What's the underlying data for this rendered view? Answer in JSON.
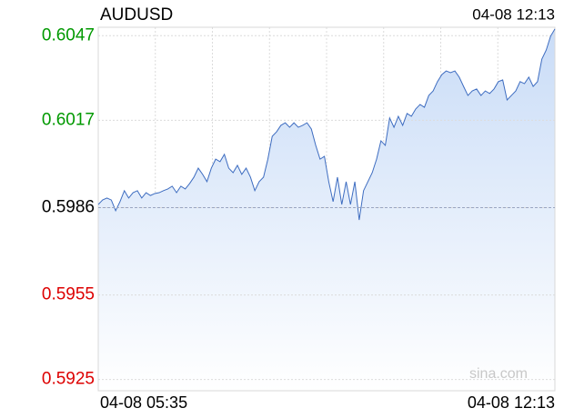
{
  "chart_data": {
    "type": "line",
    "title": "AUDUSD",
    "timestamp": "04-08 12:13",
    "watermark": "sina.com",
    "xlabels": [
      "04-08 05:35",
      "04-08 12:13"
    ],
    "x_grid_divisions": 8,
    "ylim": [
      0.5921,
      0.605
    ],
    "yticks": [
      0.6047,
      0.6017,
      0.5986,
      0.5955,
      0.5925
    ],
    "ytick_colors": [
      "#009900",
      "#009900",
      "#000000",
      "#dd0000",
      "#dd0000"
    ],
    "baseline": 0.5986,
    "grid": true,
    "color": "#3d6cc0",
    "fill": "#d6e4fa",
    "series": [
      {
        "values": [
          0.59871,
          0.59887,
          0.59894,
          0.59887,
          0.59849,
          0.59881,
          0.5992,
          0.59894,
          0.59913,
          0.5992,
          0.59894,
          0.59913,
          0.59903,
          0.5991,
          0.59913,
          0.5992,
          0.59926,
          0.59936,
          0.59913,
          0.59936,
          0.59926,
          0.59945,
          0.59968,
          0.6,
          0.59978,
          0.59952,
          0.6,
          0.60032,
          0.60023,
          0.60049,
          0.6,
          0.59984,
          0.6001,
          0.59978,
          0.6,
          0.59968,
          0.5992,
          0.59952,
          0.59968,
          0.60032,
          0.60113,
          0.60129,
          0.60152,
          0.60161,
          0.60145,
          0.60161,
          0.60145,
          0.60152,
          0.60161,
          0.60139,
          0.60081,
          0.60032,
          0.60042,
          0.59952,
          0.59881,
          0.59968,
          0.59871,
          0.59952,
          0.59871,
          0.59952,
          0.59816,
          0.5992,
          0.59952,
          0.59984,
          0.60032,
          0.60097,
          0.60081,
          0.60178,
          0.60145,
          0.60184,
          0.60152,
          0.60194,
          0.60184,
          0.6021,
          0.60226,
          0.60216,
          0.60258,
          0.60274,
          0.60307,
          0.60332,
          0.60345,
          0.60339,
          0.60345,
          0.60323,
          0.6029,
          0.60258,
          0.60274,
          0.60281,
          0.60258,
          0.60274,
          0.60265,
          0.60281,
          0.60307,
          0.60313,
          0.60242,
          0.60258,
          0.60274,
          0.60307,
          0.603,
          0.60323,
          0.6029,
          0.60307,
          0.60387,
          0.60419,
          0.60468,
          0.60494
        ]
      }
    ]
  }
}
